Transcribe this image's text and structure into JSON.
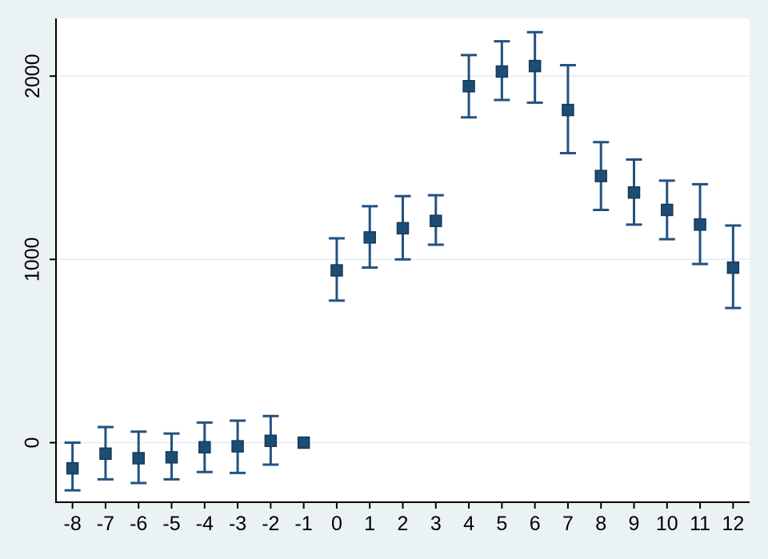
{
  "chart_data": {
    "type": "scatter",
    "subtype": "event-study-errorbar",
    "title": "",
    "xlabel": "",
    "ylabel": "",
    "x": [
      -8,
      -7,
      -6,
      -5,
      -4,
      -3,
      -2,
      -1,
      0,
      1,
      2,
      3,
      4,
      5,
      6,
      7,
      8,
      9,
      10,
      11,
      12
    ],
    "series": [
      {
        "name": "point-estimate",
        "values": [
          -140,
          -60,
          -85,
          -80,
          -25,
          -20,
          10,
          0,
          940,
          1120,
          1170,
          1210,
          1945,
          2025,
          2055,
          1815,
          1455,
          1365,
          1270,
          1190,
          955
        ],
        "ci_high": [
          0,
          85,
          60,
          50,
          110,
          120,
          145,
          null,
          1115,
          1290,
          1345,
          1350,
          2115,
          2190,
          2240,
          2060,
          1640,
          1545,
          1430,
          1410,
          1185
        ],
        "ci_low": [
          -260,
          -200,
          -220,
          -200,
          -160,
          -165,
          -120,
          null,
          775,
          955,
          1000,
          1080,
          1775,
          1870,
          1855,
          1580,
          1270,
          1190,
          1110,
          975,
          735
        ]
      }
    ],
    "x_tick_labels": [
      "-8",
      "-7",
      "-6",
      "-5",
      "-4",
      "-3",
      "-2",
      "-1",
      "0",
      "1",
      "2",
      "3",
      "4",
      "5",
      "6",
      "7",
      "8",
      "9",
      "10",
      "11",
      "12"
    ],
    "y_ticks": [
      0,
      1000,
      2000
    ],
    "y_tick_labels": [
      "0",
      "1000",
      "2000"
    ],
    "xlim": [
      -8.5,
      12.5
    ],
    "ylim": [
      -325,
      2315
    ],
    "grid": true,
    "legend": "none",
    "colors": {
      "page_bg": "#eaf2f3",
      "plot_bg": "#ffffff",
      "grid": "#e2ecf2",
      "axis": "#000000",
      "tick_text": "#000000",
      "marker": "#1d4d73",
      "marker_edge": "#16395c",
      "ci_line": "#235280"
    }
  }
}
